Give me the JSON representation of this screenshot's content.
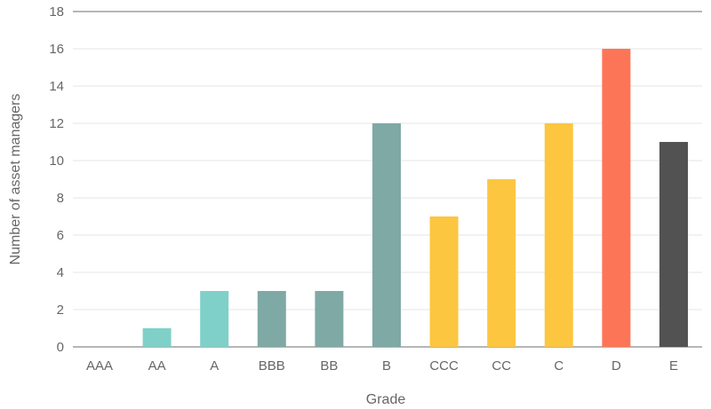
{
  "chart_data": {
    "type": "bar",
    "title": "",
    "xlabel": "Grade",
    "ylabel": "Number of asset managers",
    "ylim": [
      0,
      18
    ],
    "yticks": [
      0,
      2,
      4,
      6,
      8,
      10,
      12,
      14,
      16,
      18
    ],
    "grid": true,
    "legend": "none",
    "categories": [
      "AAA",
      "AA",
      "A",
      "BBB",
      "BB",
      "B",
      "CCC",
      "CC",
      "C",
      "D",
      "E"
    ],
    "values": [
      0,
      1,
      3,
      3,
      3,
      12,
      7,
      9,
      12,
      16,
      11
    ],
    "colors": [
      "#7fd0c8",
      "#7fd0c8",
      "#7fd0c8",
      "#7fa9a5",
      "#7fa9a5",
      "#7fa9a5",
      "#fdc640",
      "#fdc640",
      "#fdc640",
      "#fd7557",
      "#525252"
    ]
  }
}
